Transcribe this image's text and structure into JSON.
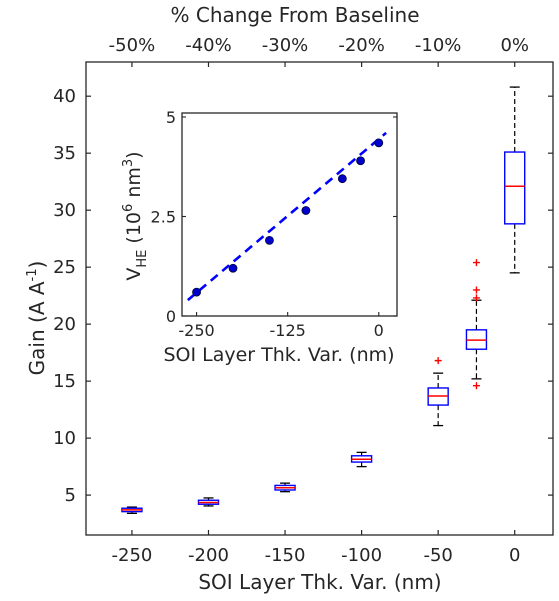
{
  "chart_data": [
    {
      "type": "box",
      "xlabel": "SOI Layer Thk. Var. (nm)",
      "ylabel": "Gain (A A",
      "ylabel_sup": "-1",
      "ylabel_end": ")",
      "top_xlabel": "% Change From Baseline",
      "xlim": [
        -280,
        25
      ],
      "ylim": [
        1.5,
        43
      ],
      "x_ticks": [
        -250,
        -200,
        -150,
        -100,
        -50,
        0
      ],
      "x_tick_labels": [
        "-250",
        "-200",
        "-150",
        "-100",
        "-50",
        "0"
      ],
      "y_ticks": [
        5,
        10,
        15,
        20,
        25,
        30,
        35,
        40
      ],
      "y_tick_labels": [
        "5",
        "10",
        "15",
        "20",
        "25",
        "30",
        "35",
        "40"
      ],
      "top_tick_positions": [
        -250,
        -200,
        -150,
        -100,
        -50,
        0
      ],
      "top_tick_labels": [
        "-50%",
        "-40%",
        "-30%",
        "-20%",
        "-10%",
        "0%"
      ],
      "boxes": [
        {
          "x": -250,
          "min": 3.4,
          "q1": 3.55,
          "median": 3.7,
          "q3": 3.85,
          "max": 3.95,
          "outliers": []
        },
        {
          "x": -200,
          "min": 4.05,
          "q1": 4.2,
          "median": 4.35,
          "q3": 4.55,
          "max": 4.75,
          "outliers": []
        },
        {
          "x": -150,
          "min": 5.3,
          "q1": 5.45,
          "median": 5.65,
          "q3": 5.85,
          "max": 6.05,
          "outliers": []
        },
        {
          "x": -100,
          "min": 7.5,
          "q1": 7.9,
          "median": 8.15,
          "q3": 8.45,
          "max": 8.75,
          "outliers": []
        },
        {
          "x": -50,
          "min": 11.1,
          "q1": 12.9,
          "median": 13.7,
          "q3": 14.4,
          "max": 15.7,
          "outliers": [
            16.8
          ]
        },
        {
          "x": -25,
          "min": 15.2,
          "q1": 17.8,
          "median": 18.6,
          "q3": 19.5,
          "max": 22.1,
          "outliers": [
            14.6,
            22.3,
            23.0,
            25.4
          ]
        },
        {
          "x": 0,
          "min": 24.5,
          "q1": 28.8,
          "median": 32.1,
          "q3": 35.1,
          "max": 40.8,
          "outliers": []
        }
      ],
      "colors": {
        "box": "#0000ff",
        "median": "#ff0000",
        "whisker": "#000000",
        "outlier": "#ff0000",
        "axis": "#262626"
      }
    },
    {
      "type": "scatter",
      "xlabel": "SOI Layer Thk. Var. (nm)",
      "ylabel_main": "V",
      "ylabel_sub": "HE",
      "ylabel_rest": " (10",
      "ylabel_sup": "6",
      "ylabel_rest2": " nm",
      "ylabel_sup2": "3",
      "ylabel_end": ")",
      "xlim": [
        -270,
        25
      ],
      "ylim": [
        0,
        5.1
      ],
      "x_ticks": [
        -250,
        -125,
        0
      ],
      "x_tick_labels": [
        "-250",
        "-125",
        "0"
      ],
      "y_ticks": [
        0,
        2.5,
        5
      ],
      "y_tick_labels": [
        "0",
        "2.5",
        "5"
      ],
      "points": [
        {
          "x": -250,
          "y": 0.6
        },
        {
          "x": -200,
          "y": 1.2
        },
        {
          "x": -150,
          "y": 1.9
        },
        {
          "x": -100,
          "y": 2.65
        },
        {
          "x": -50,
          "y": 3.45
        },
        {
          "x": -25,
          "y": 3.9
        },
        {
          "x": 0,
          "y": 4.35
        }
      ],
      "fit_line": {
        "x": [
          -262,
          10
        ],
        "y": [
          0.4,
          4.6
        ]
      },
      "colors": {
        "point": "#0000cd",
        "fit": "#0000ff",
        "axis": "#262626"
      }
    }
  ]
}
